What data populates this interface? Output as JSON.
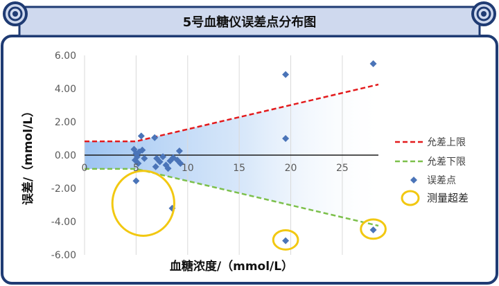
{
  "title": "5号血糖仪误差点分布图",
  "colors": {
    "frame": "#1f3b73",
    "header_bg": "#cfd9ee",
    "upper_line": "#e31a1c",
    "lower_line": "#7cc04b",
    "points": "#4a74b8",
    "circles": "#f2c811",
    "band": "#4d93e6"
  },
  "chart_data": {
    "type": "scatter",
    "xlabel": "血糖浓度/（mmol/L）",
    "ylabel": "误差/（mmol/L）",
    "xlim": [
      0,
      28.5
    ],
    "ylim": [
      -6,
      6
    ],
    "x_ticks": [
      "0",
      "5",
      "10",
      "15",
      "20",
      "25"
    ],
    "y_ticks": [
      "6.00",
      "4.00",
      "2.00",
      "0.00",
      "-2.00",
      "-4.00",
      "-6.00"
    ],
    "grid": "vertical",
    "legend_position": "right",
    "series": [
      {
        "name": "允差上限",
        "style": "dashed-line",
        "x": [
          0,
          5.0,
          28.5
        ],
        "y": [
          0.83,
          0.83,
          4.25
        ]
      },
      {
        "name": "允差下限",
        "style": "dashed-line",
        "x": [
          0,
          5.0,
          28.5
        ],
        "y": [
          -0.83,
          -0.83,
          -4.25
        ]
      },
      {
        "name": "误差点",
        "style": "diamond-markers",
        "points": [
          [
            4.8,
            0.35
          ],
          [
            5.0,
            0.1
          ],
          [
            5.1,
            -0.1
          ],
          [
            4.9,
            -0.3
          ],
          [
            5.3,
            0.2
          ],
          [
            5.6,
            0.3
          ],
          [
            5.8,
            -0.2
          ],
          [
            5.2,
            -0.5
          ],
          [
            5.5,
            1.15
          ],
          [
            6.8,
            1.05
          ],
          [
            7.0,
            -0.2
          ],
          [
            7.3,
            -0.4
          ],
          [
            7.6,
            -0.1
          ],
          [
            7.9,
            -0.6
          ],
          [
            8.1,
            -0.8
          ],
          [
            8.3,
            -0.35
          ],
          [
            6.9,
            -0.7
          ],
          [
            8.6,
            -0.15
          ],
          [
            9.0,
            -0.3
          ],
          [
            9.3,
            -0.5
          ],
          [
            9.2,
            0.25
          ],
          [
            5.0,
            -1.55
          ],
          [
            8.5,
            -3.2
          ],
          [
            19.5,
            4.85
          ],
          [
            19.5,
            1.0
          ],
          [
            28.0,
            5.5
          ],
          [
            19.5,
            -5.15
          ],
          [
            28.0,
            -4.5
          ]
        ]
      },
      {
        "name": "测量超差",
        "style": "highlight-circles",
        "points": [
          [
            5.7,
            -2.9
          ],
          [
            19.5,
            -5.1
          ],
          [
            28.0,
            -4.45
          ]
        ],
        "radius_x_units": [
          3.0,
          1.2,
          1.2
        ]
      }
    ]
  }
}
